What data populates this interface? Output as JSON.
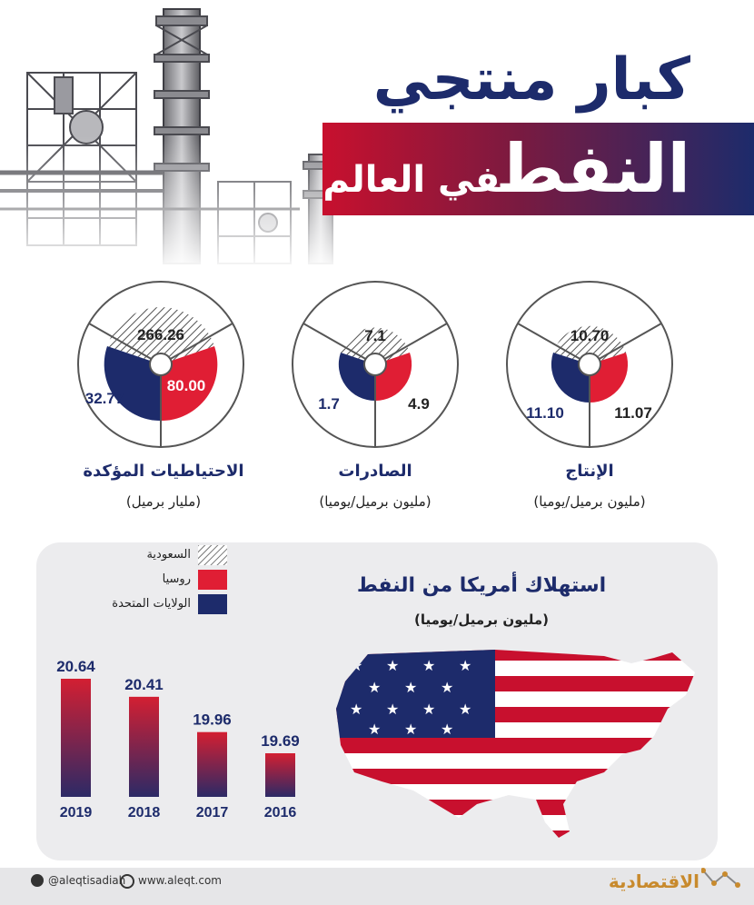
{
  "header": {
    "title_line1": "كبار منتجي",
    "title_line2_big": "النفط",
    "title_line2_small": "في العالم"
  },
  "colors": {
    "saudi": "#ffffff",
    "russia": "#e01e34",
    "usa": "#1d2b6b",
    "bar_top": "#d31f32",
    "bar_bottom": "#2c2a66"
  },
  "chart_data": [
    {
      "type": "pie",
      "label": "الإنتاج",
      "unit": "(مليون برميل/يوميا)",
      "saudi": "10.70",
      "russia": "11.07",
      "usa": "11.10"
    },
    {
      "type": "pie",
      "label": "الصادرات",
      "unit": "(مليون برميل/يوميا)",
      "saudi": "7.1",
      "russia": "4.9",
      "usa": "1.7"
    },
    {
      "type": "pie",
      "label": "الاحتياطيات المؤكدة",
      "unit": "(مليار برميل)",
      "saudi": "266.26",
      "russia": "80.00",
      "usa": "32.77"
    },
    {
      "type": "bar",
      "title": "استهلاك أمريكا من النفط",
      "unit": "(مليون برميل/يوميا)",
      "categories": [
        "2019",
        "2018",
        "2017",
        "2016"
      ],
      "values": [
        20.64,
        20.41,
        19.96,
        19.69
      ],
      "value_labels": [
        "20.64",
        "20.41",
        "19.96",
        "19.69"
      ]
    }
  ],
  "legend": [
    {
      "label": "السعودية",
      "icon": "hatched-swatch"
    },
    {
      "label": "روسيا",
      "icon": "red-swatch"
    },
    {
      "label": "الولايات المتحدة",
      "icon": "blue-swatch"
    }
  ],
  "footer": {
    "twitter": "@aleqtisadiah",
    "website": "www.aleqt.com",
    "brand": "الاقتصادية"
  }
}
